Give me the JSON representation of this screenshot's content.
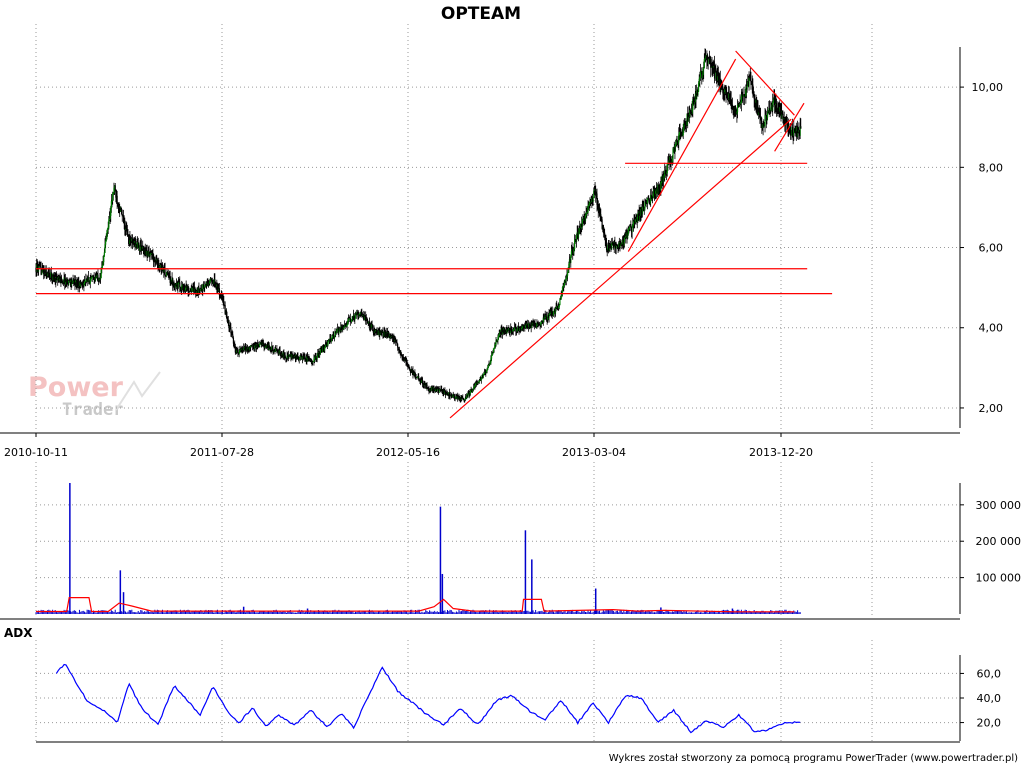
{
  "chart_data": [
    {
      "type": "line",
      "title": "OPTEAM",
      "xlabel": "",
      "ylabel": "",
      "x_tick_labels": [
        "2010-10-11",
        "2011-07-28",
        "2012-05-16",
        "2013-03-04",
        "2013-12-20"
      ],
      "y_tick_labels": [
        "2,00",
        "4,00",
        "6,00",
        "8,00",
        "10,00"
      ],
      "ylim": [
        1.5,
        11.0
      ],
      "grid": true,
      "colors": {
        "price_up": "#008000",
        "price_down": "#000000",
        "trendline": "#ff0000"
      },
      "series": [
        {
          "x": [
            "2010-10-11",
            "2010-11-15",
            "2010-12-20",
            "2011-01-20",
            "2011-02-10",
            "2011-03-05",
            "2011-04-10",
            "2011-05-15",
            "2011-06-20",
            "2011-07-15",
            "2011-07-28",
            "2011-08-20",
            "2011-09-30",
            "2011-11-05",
            "2011-12-20",
            "2012-01-25",
            "2012-03-01",
            "2012-03-25",
            "2012-04-20",
            "2012-05-16",
            "2012-06-15",
            "2012-07-10",
            "2012-08-10",
            "2012-09-15",
            "2012-10-05",
            "2012-11-05",
            "2012-12-05",
            "2013-01-05",
            "2013-02-01",
            "2013-03-04",
            "2013-03-22",
            "2013-04-15",
            "2013-05-15",
            "2013-06-15",
            "2013-07-10",
            "2013-08-05",
            "2013-08-25",
            "2013-09-15",
            "2013-10-10",
            "2013-11-01",
            "2013-11-20",
            "2013-12-10",
            "2013-12-20",
            "2014-01-05",
            "2014-01-20"
          ],
          "values": [
            5.5,
            5.2,
            5.1,
            5.3,
            7.5,
            6.2,
            5.8,
            5.1,
            4.9,
            5.2,
            4.8,
            3.4,
            3.6,
            3.3,
            3.2,
            3.9,
            4.4,
            3.9,
            3.8,
            3.0,
            2.5,
            2.4,
            2.2,
            2.9,
            3.9,
            4.0,
            4.1,
            4.5,
            6.2,
            7.4,
            6.0,
            6.1,
            6.9,
            7.6,
            8.6,
            9.6,
            10.8,
            10.1,
            9.4,
            10.2,
            9.0,
            9.7,
            9.3,
            8.9,
            8.9
          ]
        }
      ],
      "trendlines": [
        {
          "x": [
            "2010-10-11",
            "2014-01-30"
          ],
          "y": [
            5.47,
            5.47
          ]
        },
        {
          "x": [
            "2010-10-11",
            "2014-03-10"
          ],
          "y": [
            4.85,
            4.85
          ]
        },
        {
          "x": [
            "2013-04-20",
            "2014-01-30"
          ],
          "y": [
            8.1,
            8.1
          ]
        },
        {
          "x": [
            "2012-07-20",
            "2014-01-05"
          ],
          "y": [
            1.75,
            9.2
          ]
        },
        {
          "x": [
            "2013-04-25",
            "2013-10-10"
          ],
          "y": [
            5.9,
            10.7
          ]
        },
        {
          "x": [
            "2013-10-10",
            "2014-01-10"
          ],
          "y": [
            10.9,
            9.3
          ]
        },
        {
          "x": [
            "2013-12-10",
            "2014-01-25"
          ],
          "y": [
            8.4,
            9.6
          ]
        }
      ]
    },
    {
      "type": "bar",
      "xlabel": "",
      "ylabel": "",
      "y_tick_labels": [
        "100 000",
        "200 000",
        "300 000"
      ],
      "ylim": [
        0,
        360000
      ],
      "grid": true,
      "colors": {
        "bars": "#0000cc",
        "average": "#ff0000"
      },
      "spikes": [
        {
          "x": "2010-12-03",
          "value": 360000
        },
        {
          "x": "2011-02-20",
          "value": 120000
        },
        {
          "x": "2011-02-25",
          "value": 60000
        },
        {
          "x": "2012-07-05",
          "value": 295000
        },
        {
          "x": "2012-07-08",
          "value": 110000
        },
        {
          "x": "2012-11-15",
          "value": 230000
        },
        {
          "x": "2012-11-25",
          "value": 150000
        },
        {
          "x": "2013-03-05",
          "value": 70000
        },
        {
          "x": "2011-09-01",
          "value": 20000
        },
        {
          "x": "2011-12-10",
          "value": 15000
        },
        {
          "x": "2013-06-15",
          "value": 18000
        },
        {
          "x": "2013-10-05",
          "value": 15000
        }
      ],
      "base_level": 7000,
      "average": {
        "x": [
          "2010-10-11",
          "2010-11-28",
          "2010-12-02",
          "2011-01-02",
          "2011-01-06",
          "2011-02-01",
          "2011-02-18",
          "2011-03-10",
          "2011-04-10",
          "2012-06-01",
          "2012-06-25",
          "2012-07-10",
          "2012-07-25",
          "2012-08-25",
          "2012-11-10",
          "2012-11-12",
          "2012-12-10",
          "2012-12-14",
          "2013-04-01",
          "2013-05-10",
          "2013-06-20",
          "2013-10-10",
          "2014-01-10"
        ],
        "values": [
          7000,
          7000,
          45000,
          45000,
          7000,
          7000,
          30000,
          22000,
          8000,
          8000,
          20000,
          40000,
          15000,
          8000,
          8000,
          40000,
          40000,
          8000,
          12000,
          8000,
          10000,
          6000,
          6000
        ]
      }
    },
    {
      "type": "line",
      "title": "ADX",
      "xlabel": "",
      "ylabel": "",
      "y_tick_labels": [
        "20,0",
        "40,0",
        "60,0"
      ],
      "ylim": [
        5,
        75
      ],
      "grid": true,
      "colors": {
        "line": "#0000ff"
      },
      "series": [
        {
          "name": "ADX",
          "x": [
            "2010-11-12",
            "2010-11-25",
            "2010-12-10",
            "2010-12-30",
            "2011-01-25",
            "2011-02-15",
            "2011-03-05",
            "2011-03-25",
            "2011-04-20",
            "2011-05-15",
            "2011-06-05",
            "2011-06-25",
            "2011-07-15",
            "2011-08-05",
            "2011-08-25",
            "2011-09-15",
            "2011-10-05",
            "2011-10-25",
            "2011-11-20",
            "2011-12-15",
            "2012-01-10",
            "2012-02-01",
            "2012-02-20",
            "2012-03-15",
            "2012-04-05",
            "2012-04-30",
            "2012-05-25",
            "2012-06-15",
            "2012-07-10",
            "2012-08-05",
            "2012-09-01",
            "2012-10-01",
            "2012-10-25",
            "2012-11-20",
            "2012-12-15",
            "2013-01-10",
            "2013-02-05",
            "2013-03-01",
            "2013-03-25",
            "2013-04-20",
            "2013-05-15",
            "2013-06-10",
            "2013-07-05",
            "2013-08-01",
            "2013-08-25",
            "2013-09-20",
            "2013-10-15",
            "2013-11-10",
            "2013-12-05",
            "2013-12-25",
            "2014-01-20"
          ],
          "values": [
            60,
            68,
            55,
            38,
            30,
            20,
            52,
            32,
            18,
            50,
            38,
            26,
            50,
            30,
            20,
            32,
            17,
            26,
            18,
            30,
            16,
            28,
            16,
            42,
            65,
            45,
            35,
            26,
            18,
            32,
            18,
            38,
            42,
            30,
            22,
            38,
            20,
            36,
            20,
            42,
            40,
            20,
            30,
            12,
            22,
            16,
            26,
            12,
            15,
            20,
            20
          ]
        }
      ]
    }
  ],
  "watermark": {
    "line1": "Power",
    "line2": "Trader"
  },
  "footer": "Wykres został stworzony za pomocą programu PowerTrader (www.powertrader.pl)"
}
